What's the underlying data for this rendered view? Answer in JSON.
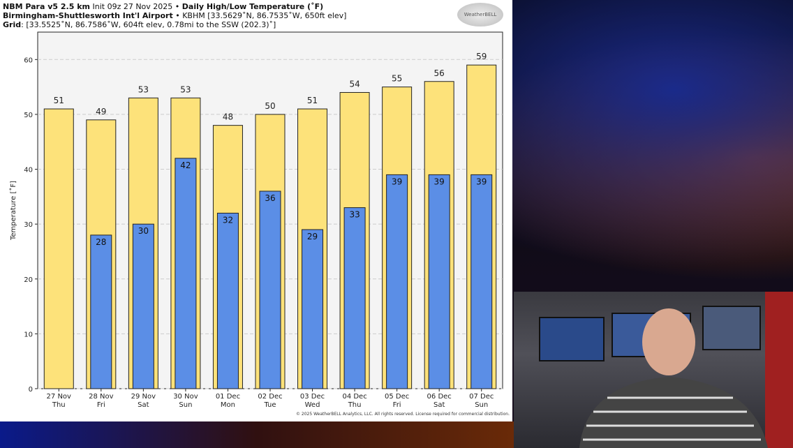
{
  "header": {
    "model": "NBM Para v5 2.5 km",
    "init": "Init 09z 27 Nov 2025",
    "product": "Daily High/Low Temperature (˚F)",
    "station": "Birmingham-Shuttlesworth Int'l Airport",
    "station_info": "KBHM [33.5629˚N, 86.7535˚W, 650ft elev]",
    "grid_label": "Grid",
    "grid_info": "[33.5525˚N, 86.7586˚W, 604ft elev, 0.78mi to the SSW (202.3)˚]"
  },
  "logo": "WeatherBELL",
  "copyright": "© 2025 WeatherBELL Analytics, LLC. All rights reserved. License required for commercial distribution.",
  "chart_data": {
    "type": "bar",
    "title": "Daily High/Low Temperature (˚F)",
    "ylabel": "Temperature [˚F]",
    "ylim": [
      0,
      65
    ],
    "yticks": [
      0,
      10,
      20,
      30,
      40,
      50,
      60
    ],
    "grid": true,
    "categories": [
      [
        "27 Nov",
        "Thu"
      ],
      [
        "28 Nov",
        "Fri"
      ],
      [
        "29 Nov",
        "Sat"
      ],
      [
        "30 Nov",
        "Sun"
      ],
      [
        "01 Dec",
        "Mon"
      ],
      [
        "02 Dec",
        "Tue"
      ],
      [
        "03 Dec",
        "Wed"
      ],
      [
        "04 Dec",
        "Thu"
      ],
      [
        "05 Dec",
        "Fri"
      ],
      [
        "06 Dec",
        "Sat"
      ],
      [
        "07 Dec",
        "Sun"
      ]
    ],
    "series": [
      {
        "key": "high",
        "color": "#fde27a",
        "values": [
          51,
          49,
          53,
          53,
          48,
          50,
          51,
          54,
          55,
          56,
          59
        ]
      },
      {
        "key": "low",
        "color": "#5b8ee6",
        "values": [
          null,
          28,
          30,
          42,
          32,
          36,
          29,
          33,
          39,
          39,
          39
        ]
      }
    ]
  }
}
